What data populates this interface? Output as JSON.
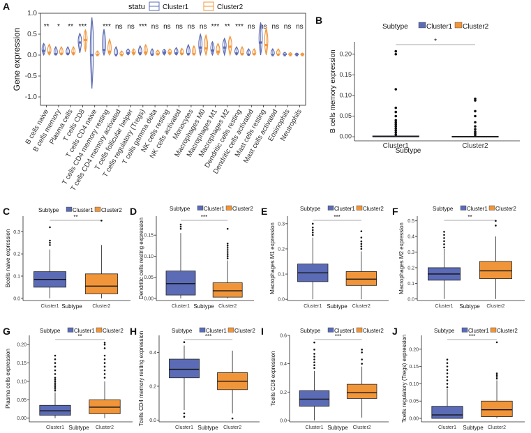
{
  "colors": {
    "cluster1": "#5B6BB5",
    "cluster2": "#F0953A",
    "axis": "#222222"
  },
  "chart_data": [
    {
      "panel": "A",
      "type": "violin",
      "title": "",
      "ylabel": "Gene expression",
      "xlabel": "",
      "legend_title": "statu",
      "legend": [
        "Cluster1",
        "Cluster2"
      ],
      "ylim": [
        -1.2,
        1.0
      ],
      "yticks": [
        -1.0,
        -0.5,
        0.0,
        0.5,
        1.0
      ],
      "ytick_labels": [
        "-1.0",
        "-0.5",
        "0.0",
        "0.5",
        "1.0"
      ],
      "categories": [
        "B cells naive",
        "B cells memory",
        "Plasma cells",
        "T cells CD8",
        "T cells CD4 naive",
        "T cells CD4 memory resting",
        "T cells CD4 memory activated",
        "T cells follicular helper",
        "T cells regulatory (Tregs)",
        "T cells gamma delta",
        "NK cells resting",
        "NK cells activated",
        "Monocytes",
        "Macrophages M0",
        "Macrophages M1",
        "Macrophages M2",
        "Dendritic cells resting",
        "Dendritic cells activated",
        "Mast cells resting",
        "Mast cells activated",
        "Eosinophils",
        "Neutrophils"
      ],
      "significance": [
        "**",
        "*",
        "**",
        "***",
        "",
        "***",
        "ns",
        "ns",
        "***",
        "ns",
        "ns",
        "ns",
        "ns",
        "ns",
        "***",
        "**",
        "***",
        "ns",
        "ns",
        "ns",
        "ns",
        "ns"
      ],
      "series": [
        {
          "name": "Cluster1",
          "medians": [
            0.1,
            0.02,
            0.03,
            0.3,
            0.0,
            0.12,
            0.0,
            0.05,
            0.04,
            0.01,
            0.06,
            0.04,
            0.02,
            0.18,
            0.11,
            0.18,
            0.04,
            0.01,
            0.3,
            0.0,
            0.0,
            0.0
          ],
          "mins": [
            0,
            0,
            0,
            0.05,
            -0.8,
            0,
            0,
            0,
            0,
            0,
            0,
            0,
            0,
            0,
            0,
            0,
            0,
            0,
            0,
            0,
            0,
            0
          ],
          "maxs": [
            0.28,
            0.2,
            0.2,
            0.52,
            0.9,
            0.62,
            0.2,
            0.15,
            0.22,
            0.15,
            0.14,
            0.18,
            0.25,
            0.5,
            0.32,
            0.4,
            0.2,
            0.15,
            0.78,
            0.15,
            0.07,
            0.05
          ]
        },
        {
          "name": "Cluster2",
          "medians": [
            0.06,
            0.03,
            0.04,
            0.36,
            0.0,
            0.08,
            0.0,
            0.05,
            0.06,
            0.02,
            0.05,
            0.03,
            0.02,
            0.16,
            0.08,
            0.2,
            0.02,
            0.02,
            0.24,
            0.01,
            0.0,
            0.0
          ],
          "mins": [
            0,
            0,
            0,
            0.08,
            0,
            0,
            0,
            0,
            0,
            0,
            0,
            0,
            0,
            0,
            0,
            0,
            0,
            0,
            0,
            0,
            0,
            0
          ],
          "maxs": [
            0.26,
            0.2,
            0.2,
            0.6,
            0.1,
            0.38,
            0.1,
            0.15,
            0.25,
            0.12,
            0.15,
            0.16,
            0.22,
            0.48,
            0.28,
            0.45,
            0.2,
            0.15,
            0.65,
            0.15,
            0.06,
            0.05
          ]
        }
      ]
    },
    {
      "panel": "B",
      "type": "box",
      "ylabel": "B cells memory expression",
      "xlabel": "Subtype",
      "legend_title": "Subtype",
      "legend": [
        "Cluster1",
        "Cluster2"
      ],
      "categories": [
        "Cluster1",
        "Cluster2"
      ],
      "significance": "*",
      "ylim": [
        -0.01,
        0.23
      ],
      "yticks": [
        0.0,
        0.05,
        0.1,
        0.15,
        0.2
      ],
      "ytick_labels": [
        "0.00",
        "0.05",
        "0.10",
        "0.15",
        "0.20"
      ],
      "boxes": [
        {
          "name": "Cluster1",
          "q1": 0,
          "median": 0,
          "q3": 0.002,
          "whisker_low": 0,
          "whisker_high": 0.003,
          "outliers": [
            0.005,
            0.01,
            0.015,
            0.02,
            0.025,
            0.03,
            0.035,
            0.04,
            0.05,
            0.06,
            0.07,
            0.115,
            0.2,
            0.207
          ]
        },
        {
          "name": "Cluster2",
          "q1": 0,
          "median": 0,
          "q3": 0.001,
          "whisker_low": 0,
          "whisker_high": 0.002,
          "outliers": [
            0.004,
            0.008,
            0.012,
            0.018,
            0.025,
            0.035,
            0.05,
            0.062,
            0.088,
            0.092
          ]
        }
      ]
    },
    {
      "panel": "C",
      "type": "box",
      "ylabel": "Bcells naive expression",
      "xlabel": "Subtype",
      "legend_title": "Subtype",
      "legend": [
        "Cluster1",
        "Cluster2"
      ],
      "categories": [
        "Cluster1",
        "Cluster2"
      ],
      "significance": "**",
      "ylim": [
        -0.01,
        0.37
      ],
      "yticks": [
        0.0,
        0.1,
        0.2,
        0.3
      ],
      "ytick_labels": [
        "0.0",
        "0.1",
        "0.2",
        "0.3"
      ],
      "boxes": [
        {
          "name": "Cluster1",
          "q1": 0.05,
          "median": 0.085,
          "q3": 0.12,
          "whisker_low": 0,
          "whisker_high": 0.22,
          "outliers": [
            0.24,
            0.25,
            0.26,
            0.32
          ]
        },
        {
          "name": "Cluster2",
          "q1": 0.02,
          "median": 0.055,
          "q3": 0.11,
          "whisker_low": 0,
          "whisker_high": 0.24,
          "outliers": [
            0.35
          ]
        }
      ]
    },
    {
      "panel": "D",
      "type": "box",
      "ylabel": "Dendritic cells resting expression",
      "xlabel": "Subtype",
      "legend_title": "Subtype",
      "legend": [
        "Cluster1",
        "Cluster2"
      ],
      "categories": [
        "Cluster1",
        "Cluster2"
      ],
      "significance": "***",
      "ylim": [
        -0.005,
        0.195
      ],
      "yticks": [
        0.0,
        0.05,
        0.1,
        0.15
      ],
      "ytick_labels": [
        "0.00",
        "0.05",
        "0.10",
        "0.15"
      ],
      "boxes": [
        {
          "name": "Cluster1",
          "q1": 0.008,
          "median": 0.035,
          "q3": 0.065,
          "whisker_low": 0,
          "whisker_high": 0.155,
          "outliers": [
            0.165,
            0.17,
            0.175
          ]
        },
        {
          "name": "Cluster2",
          "q1": 0.003,
          "median": 0.018,
          "q3": 0.037,
          "whisker_low": 0,
          "whisker_high": 0.09,
          "outliers": [
            0.095,
            0.1,
            0.105,
            0.11,
            0.115,
            0.12,
            0.125,
            0.13,
            0.165
          ]
        }
      ]
    },
    {
      "panel": "E",
      "type": "box",
      "ylabel": "Macrophages M1 expression",
      "xlabel": "Subtype",
      "legend_title": "Subtype",
      "legend": [
        "Cluster1",
        "Cluster2"
      ],
      "categories": [
        "Cluster1",
        "Cluster2"
      ],
      "significance": "***",
      "ylim": [
        -0.005,
        0.33
      ],
      "yticks": [
        0.0,
        0.1,
        0.2,
        0.3
      ],
      "ytick_labels": [
        "0.0",
        "0.1",
        "0.2",
        "0.3"
      ],
      "boxes": [
        {
          "name": "Cluster1",
          "q1": 0.07,
          "median": 0.105,
          "q3": 0.14,
          "whisker_low": 0,
          "whisker_high": 0.245,
          "outliers": [
            0.255,
            0.265,
            0.275,
            0.285,
            0.3
          ]
        },
        {
          "name": "Cluster2",
          "q1": 0.055,
          "median": 0.08,
          "q3": 0.11,
          "whisker_low": 0,
          "whisker_high": 0.19,
          "outliers": [
            0.2,
            0.21,
            0.22,
            0.23,
            0.245,
            0.27
          ]
        }
      ]
    },
    {
      "panel": "F",
      "type": "box",
      "ylabel": "Macrophages M2 expression",
      "xlabel": "Subtype",
      "legend_title": "Subtype",
      "legend": [
        "Cluster1",
        "Cluster2"
      ],
      "categories": [
        "Cluster1",
        "Cluster2"
      ],
      "significance": "**",
      "ylim": [
        -0.01,
        0.53
      ],
      "yticks": [
        0.0,
        0.1,
        0.2,
        0.3,
        0.4,
        0.5
      ],
      "ytick_labels": [
        "0.0",
        "0.1",
        "0.2",
        "0.3",
        "0.4",
        "0.5"
      ],
      "boxes": [
        {
          "name": "Cluster1",
          "q1": 0.12,
          "median": 0.16,
          "q3": 0.2,
          "whisker_low": 0,
          "whisker_high": 0.32,
          "outliers": [
            0.33,
            0.35,
            0.37,
            0.39,
            0.41,
            0.43
          ]
        },
        {
          "name": "Cluster2",
          "q1": 0.13,
          "median": 0.18,
          "q3": 0.24,
          "whisker_low": 0,
          "whisker_high": 0.4,
          "outliers": [
            0.47,
            0.5
          ]
        }
      ]
    },
    {
      "panel": "G",
      "type": "box",
      "ylabel": "Plasma cells expression",
      "xlabel": "Subtype",
      "legend_title": "Subtype",
      "legend": [
        "Cluster1",
        "Cluster2"
      ],
      "categories": [
        "Cluster1",
        "Cluster2"
      ],
      "significance": "**",
      "ylim": [
        -0.01,
        0.225
      ],
      "yticks": [
        0.0,
        0.05,
        0.1,
        0.15,
        0.2
      ],
      "ytick_labels": [
        "0.00",
        "0.05",
        "0.10",
        "0.15",
        "0.20"
      ],
      "boxes": [
        {
          "name": "Cluster1",
          "q1": 0.008,
          "median": 0.02,
          "q3": 0.035,
          "whisker_low": 0,
          "whisker_high": 0.07,
          "outliers": [
            0.075,
            0.08,
            0.085,
            0.09,
            0.095,
            0.1,
            0.105,
            0.11,
            0.12,
            0.13,
            0.14,
            0.15,
            0.16,
            0.17
          ]
        },
        {
          "name": "Cluster2",
          "q1": 0.012,
          "median": 0.03,
          "q3": 0.05,
          "whisker_low": 0,
          "whisker_high": 0.1,
          "outliers": [
            0.11,
            0.12,
            0.13,
            0.14,
            0.15,
            0.16,
            0.17,
            0.19,
            0.2,
            0.205
          ]
        }
      ]
    },
    {
      "panel": "H",
      "type": "box",
      "ylabel": "Tcells CD4 memory resting expression",
      "xlabel": "Subtype",
      "legend_title": "Subtype",
      "legend": [
        "Cluster1",
        "Cluster2"
      ],
      "categories": [
        "Cluster1",
        "Cluster2"
      ],
      "significance": "***",
      "ylim": [
        -0.01,
        0.5
      ],
      "yticks": [
        0.0,
        0.2,
        0.4
      ],
      "ytick_labels": [
        "0.0",
        "0.2",
        "0.4"
      ],
      "boxes": [
        {
          "name": "Cluster1",
          "q1": 0.25,
          "median": 0.3,
          "q3": 0.36,
          "whisker_low": 0.06,
          "whisker_high": 0.44,
          "outliers": [
            0.02,
            0.04,
            0.46
          ]
        },
        {
          "name": "Cluster2",
          "q1": 0.18,
          "median": 0.23,
          "q3": 0.28,
          "whisker_low": 0.04,
          "whisker_high": 0.41,
          "outliers": [
            0.01
          ]
        }
      ]
    },
    {
      "panel": "I",
      "type": "box",
      "ylabel": "Tcells CD8 expression",
      "xlabel": "Subtype",
      "legend_title": "Subtype",
      "legend": [
        "Cluster1",
        "Cluster2"
      ],
      "categories": [
        "Cluster1",
        "Cluster2"
      ],
      "significance": "***",
      "ylim": [
        -0.01,
        0.6
      ],
      "yticks": [
        0.0,
        0.2,
        0.4,
        0.6
      ],
      "ytick_labels": [
        "0.0",
        "0.2",
        "0.4",
        "0.6"
      ],
      "boxes": [
        {
          "name": "Cluster1",
          "q1": 0.1,
          "median": 0.15,
          "q3": 0.21,
          "whisker_low": 0,
          "whisker_high": 0.35,
          "outliers": [
            0.37,
            0.39,
            0.41,
            0.43,
            0.45,
            0.47,
            0.5,
            0.55
          ]
        },
        {
          "name": "Cluster2",
          "q1": 0.155,
          "median": 0.195,
          "q3": 0.255,
          "whisker_low": 0.02,
          "whisker_high": 0.38,
          "outliers": [
            0.4,
            0.43,
            0.48,
            0.5
          ]
        }
      ]
    },
    {
      "panel": "J",
      "type": "box",
      "ylabel": "Tcells regulatory (Tregs) expression",
      "xlabel": "Subtype",
      "legend_title": "Subtype",
      "legend": [
        "Cluster1",
        "Cluster2"
      ],
      "categories": [
        "Cluster1",
        "Cluster2"
      ],
      "significance": "***",
      "ylim": [
        -0.01,
        0.24
      ],
      "yticks": [
        0.0,
        0.05,
        0.1,
        0.15,
        0.2
      ],
      "ytick_labels": [
        "0.00",
        "0.05",
        "0.10",
        "0.15",
        "0.20"
      ],
      "boxes": [
        {
          "name": "Cluster1",
          "q1": 0.0,
          "median": 0.01,
          "q3": 0.035,
          "whisker_low": 0,
          "whisker_high": 0.085,
          "outliers": [
            0.09,
            0.1,
            0.11,
            0.12,
            0.13,
            0.14,
            0.15,
            0.16,
            0.17
          ]
        },
        {
          "name": "Cluster2",
          "q1": 0.005,
          "median": 0.025,
          "q3": 0.05,
          "whisker_low": 0,
          "whisker_high": 0.11,
          "outliers": [
            0.115,
            0.12,
            0.125,
            0.13,
            0.22
          ]
        }
      ]
    }
  ]
}
